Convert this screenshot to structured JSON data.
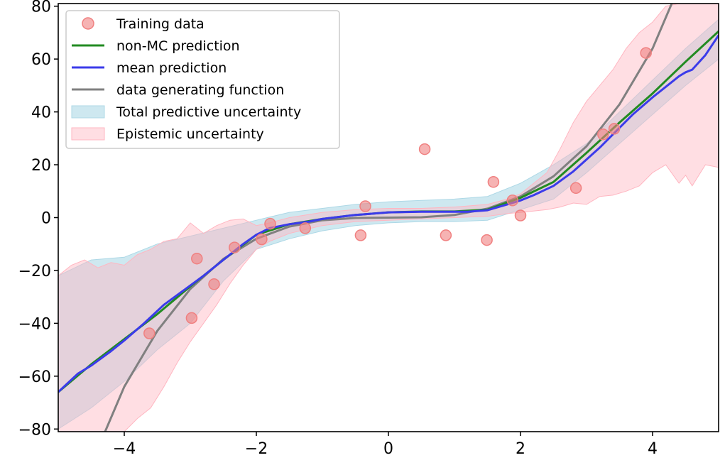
{
  "chart_data": {
    "type": "scatter",
    "title": "",
    "xlabel": "",
    "ylabel": "",
    "xlim": [
      -5,
      5
    ],
    "ylim": [
      -81,
      81
    ],
    "xticks": [
      -4,
      -2,
      0,
      2,
      4
    ],
    "yticks": [
      -80,
      -60,
      -40,
      -20,
      0,
      20,
      40,
      60,
      80
    ],
    "xtick_labels": [
      "−4",
      "−2",
      "0",
      "2",
      "4"
    ],
    "ytick_labels": [
      "−80",
      "−60",
      "−40",
      "−20",
      "0",
      "20",
      "40",
      "60",
      "80"
    ],
    "grid": false,
    "legend_position": "upper-left",
    "series": [
      {
        "name": "Training data",
        "kind": "scatter",
        "color": "#f08080",
        "x": [
          -3.62,
          -2.98,
          -2.9,
          -2.64,
          -2.33,
          -1.92,
          -1.79,
          -1.26,
          -0.42,
          -0.35,
          0.55,
          0.87,
          1.49,
          1.59,
          1.88,
          2.0,
          2.84,
          3.25,
          3.42,
          3.9
        ],
        "y": [
          -43.8,
          -38,
          -15.5,
          -25.2,
          -11.3,
          -8.2,
          -2.3,
          -4,
          -6.7,
          4.3,
          25.9,
          -6.7,
          -8.5,
          13.5,
          6.5,
          0.8,
          11.2,
          31.5,
          33.6,
          62.3
        ]
      },
      {
        "name": "non-MC prediction",
        "kind": "line",
        "color": "#228b22",
        "x": [
          -5,
          -4.5,
          -4,
          -3.5,
          -3,
          -2.5,
          -2,
          -1.5,
          -1,
          -0.5,
          0,
          0.5,
          1,
          1.5,
          2,
          2.5,
          3,
          3.5,
          4,
          4.5,
          5
        ],
        "y": [
          -66,
          -55.5,
          -46,
          -36.5,
          -26,
          -16,
          -6.5,
          -2.5,
          -0.5,
          1,
          2,
          2.3,
          2.3,
          3,
          7.5,
          13.5,
          24.5,
          36,
          47,
          59,
          70.5
        ]
      },
      {
        "name": "mean prediction",
        "kind": "line",
        "color": "#3b3bea",
        "x": [
          -5,
          -4.7,
          -4.5,
          -4.2,
          -4,
          -3.7,
          -3.4,
          -3.1,
          -2.8,
          -2.5,
          -2.2,
          -2,
          -1.8,
          -1.5,
          -1.2,
          -1,
          -0.5,
          0,
          0.5,
          1,
          1.2,
          1.5,
          1.8,
          2,
          2.2,
          2.5,
          2.8,
          3,
          3.2,
          3.5,
          3.7,
          4,
          4.2,
          4.4,
          4.5,
          4.6,
          4.8,
          5
        ],
        "y": [
          -66,
          -59,
          -56,
          -50.5,
          -46.5,
          -40,
          -33,
          -27.5,
          -22,
          -16,
          -10,
          -6.5,
          -4,
          -2.5,
          -1.5,
          -0.5,
          1,
          2,
          2.2,
          2.2,
          2.2,
          2.8,
          5,
          6.5,
          8.5,
          12,
          17.5,
          22,
          26.5,
          34,
          39,
          45.5,
          49.5,
          53.5,
          55,
          56,
          61.5,
          69
        ]
      },
      {
        "name": "data generating function",
        "kind": "line",
        "color": "#808080",
        "x": [
          -4.29,
          -4,
          -3.5,
          -3,
          -2.5,
          -2,
          -1.5,
          -1,
          -0.5,
          0,
          0.5,
          1,
          1.5,
          2,
          2.5,
          3,
          3.5,
          4,
          4.29
        ],
        "y": [
          -81,
          -64,
          -42.875,
          -27,
          -15.625,
          -8,
          -3.375,
          -1,
          -0.125,
          0,
          0.125,
          1,
          3.375,
          8,
          15.625,
          27,
          42.875,
          64,
          81
        ]
      }
    ],
    "bands": [
      {
        "name": "Total predictive uncertainty",
        "color": "#add8e6",
        "x": [
          -5,
          -4.5,
          -4,
          -3.5,
          -3,
          -2.5,
          -2,
          -1.5,
          -1,
          -0.5,
          0,
          0.5,
          1,
          1.5,
          2,
          2.5,
          3,
          3.5,
          4,
          4.5,
          5
        ],
        "upper": [
          -22,
          -16,
          -15,
          -10,
          -7,
          -4,
          -1,
          2,
          3.5,
          5,
          6,
          6.5,
          7,
          8,
          13,
          20,
          28,
          40,
          52,
          64,
          75
        ],
        "lower": [
          -80,
          -72,
          -62,
          -50,
          -40,
          -24,
          -12,
          -8,
          -5,
          -3,
          -2,
          -1.5,
          -1.5,
          -1,
          3,
          7,
          17,
          28,
          39,
          50,
          60
        ]
      },
      {
        "name": "Epistemic uncertainty",
        "color": "#ffb6c1",
        "x": [
          -5,
          -4.8,
          -4.6,
          -4.4,
          -4.2,
          -4,
          -3.8,
          -3.6,
          -3.4,
          -3.2,
          -3,
          -2.8,
          -2.6,
          -2.4,
          -2.2,
          -2,
          -1.8,
          -1.5,
          -1,
          -0.5,
          0,
          0.5,
          1,
          1.5,
          1.8,
          2,
          2.2,
          2.4,
          2.6,
          2.8,
          3,
          3.2,
          3.4,
          3.6,
          3.8,
          4,
          4.2,
          4.4,
          4.5,
          4.6,
          4.8,
          5
        ],
        "upper": [
          -22,
          -18,
          -16,
          -19,
          -17,
          -18,
          -14,
          -12,
          -9,
          -8,
          -2,
          -6,
          -3,
          -1,
          -0.5,
          -3,
          -2,
          0,
          2,
          3,
          3.5,
          3.5,
          4,
          5,
          7,
          9,
          13,
          17,
          26,
          36,
          44,
          50,
          56,
          64,
          70,
          74,
          80,
          81,
          81,
          81,
          81,
          81
        ],
        "lower": [
          -81,
          -81,
          -81,
          -81,
          -81,
          -81,
          -76,
          -72,
          -64,
          -55,
          -47,
          -40,
          -33,
          -25,
          -18,
          -12,
          -9,
          -6,
          -3,
          -1.5,
          -1,
          -0.5,
          0,
          0.5,
          1.5,
          2,
          2.5,
          3,
          4,
          5.5,
          5,
          8,
          8.5,
          10,
          12,
          17,
          20,
          13,
          16,
          12,
          20,
          19
        ]
      }
    ],
    "legend": {
      "entries": [
        {
          "label": "Training data",
          "kind": "marker",
          "color": "#f08080"
        },
        {
          "label": "non-MC prediction",
          "kind": "line",
          "color": "#228b22"
        },
        {
          "label": "mean prediction",
          "kind": "line",
          "color": "#3b3bea"
        },
        {
          "label": "data generating function",
          "kind": "line",
          "color": "#808080"
        },
        {
          "label": "Total predictive uncertainty",
          "kind": "patch",
          "color": "#add8e6"
        },
        {
          "label": "Epistemic uncertainty",
          "kind": "patch",
          "color": "#ffb6c1"
        }
      ]
    },
    "composite_band_color": "#cfcad3"
  }
}
